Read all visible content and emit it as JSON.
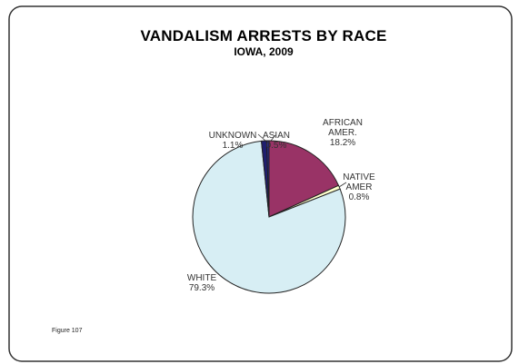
{
  "chart_data": {
    "type": "pie",
    "title": "VANDALISM ARRESTS BY RACE",
    "subtitle": "IOWA, 2009",
    "slices": [
      {
        "label": [
          "AFRICAN",
          "AMER."
        ],
        "pct_text": "18.2%",
        "value": 18.2,
        "color": "#993366"
      },
      {
        "label": [
          "NATIVE",
          "AMER"
        ],
        "pct_text": "0.8%",
        "value": 0.8,
        "color": "#ffffcc"
      },
      {
        "label": [
          "WHITE"
        ],
        "pct_text": "79.3%",
        "value": 79.3,
        "color": "#d7eef4"
      },
      {
        "label": [
          "UNKNOWN"
        ],
        "pct_text": "1.1%",
        "value": 1.1,
        "color": "#1f1f6f"
      },
      {
        "label": [
          "ASIAN"
        ],
        "pct_text": "0.5%",
        "value": 0.5,
        "color": "#2a2a8a"
      }
    ]
  },
  "footer": {
    "figure_label": "Figure 107"
  }
}
